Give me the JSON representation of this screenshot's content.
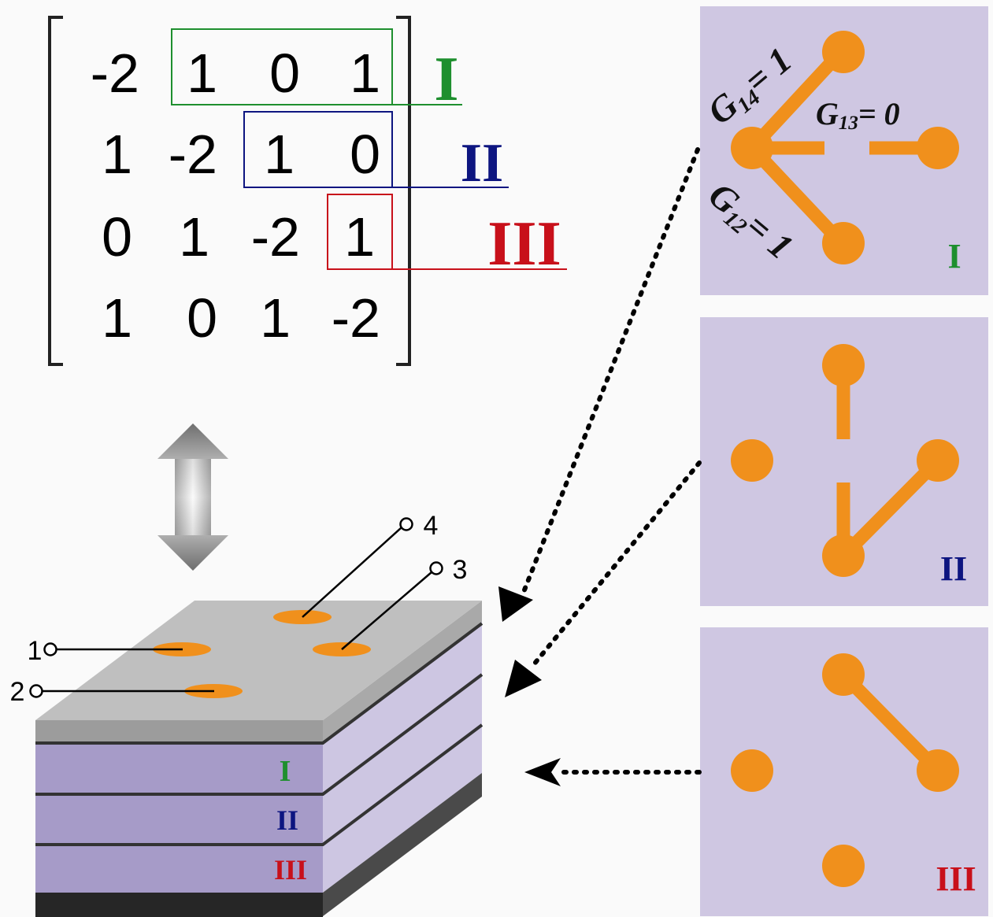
{
  "matrix": {
    "rows": [
      [
        "-2",
        "1",
        "0",
        "1"
      ],
      [
        "1",
        "-2",
        "1",
        "0"
      ],
      [
        "0",
        "1",
        "-2",
        "1"
      ],
      [
        "1",
        "0",
        "1",
        "-2"
      ]
    ],
    "groups": [
      {
        "label": "I",
        "color": "#1e8f2e"
      },
      {
        "label": "II",
        "color": "#0d1580"
      },
      {
        "label": "III",
        "color": "#c8101a"
      }
    ]
  },
  "panels": [
    {
      "label": "I",
      "color": "#1e8f2e",
      "annotations": [
        {
          "base": "G",
          "sub": "14",
          "rest": "= 1"
        },
        {
          "base": "G",
          "sub": "13",
          "rest": "= 0"
        },
        {
          "base": "G",
          "sub": "12",
          "rest": "= 1"
        }
      ]
    },
    {
      "label": "II",
      "color": "#0d1580"
    },
    {
      "label": "III",
      "color": "#c8101a"
    }
  ],
  "device": {
    "ports": [
      "1",
      "2",
      "3",
      "4"
    ],
    "layers": [
      {
        "label": "I",
        "color": "#1e8f2e"
      },
      {
        "label": "II",
        "color": "#0d1580"
      },
      {
        "label": "III",
        "color": "#c8101a"
      }
    ]
  },
  "colors": {
    "node": "#f0901c",
    "panel_bg": "#cfc7e2",
    "layer_front": "#a69bc8",
    "layer_side": "#cdc6e2",
    "top_surface": "#bfbfbf"
  }
}
